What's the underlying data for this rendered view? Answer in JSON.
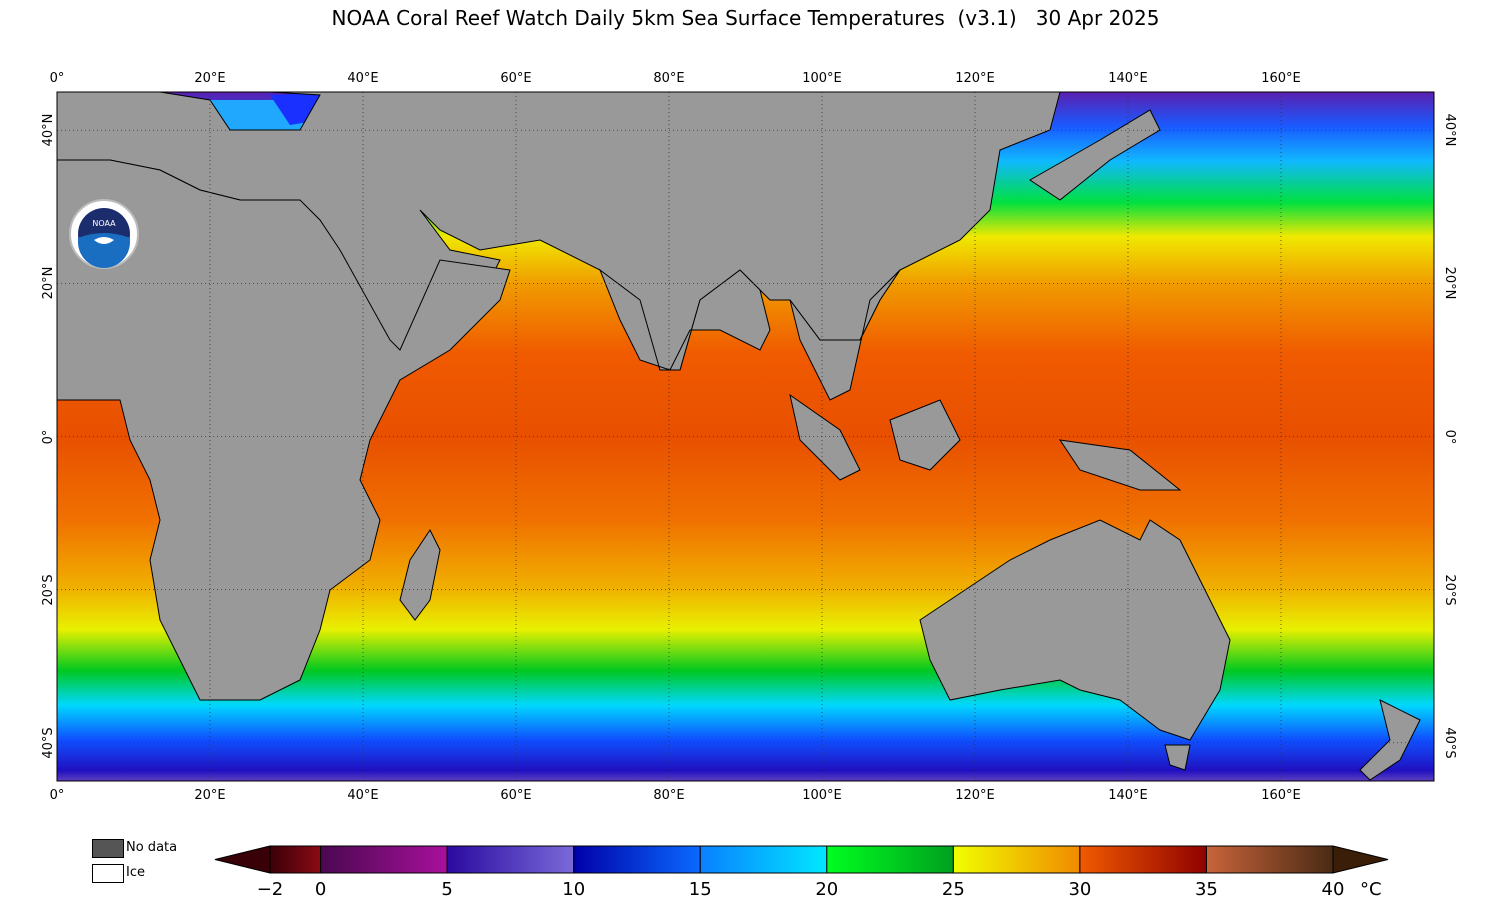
{
  "title": "NOAA Coral Reef Watch Daily 5km Sea Surface Temperatures  (v3.1)   30 Apr 2025",
  "map": {
    "lon_range": [
      0,
      180
    ],
    "lat_range": [
      -45,
      45
    ],
    "lon_ticks": [
      {
        "value": 0,
        "label": "0°"
      },
      {
        "value": 20,
        "label": "20°E"
      },
      {
        "value": 40,
        "label": "40°E"
      },
      {
        "value": 60,
        "label": "60°E"
      },
      {
        "value": 80,
        "label": "80°E"
      },
      {
        "value": 100,
        "label": "100°E"
      },
      {
        "value": 120,
        "label": "120°E"
      },
      {
        "value": 140,
        "label": "140°E"
      },
      {
        "value": 160,
        "label": "160°E"
      }
    ],
    "lat_ticks": [
      {
        "value": 40,
        "label": "40°N"
      },
      {
        "value": 20,
        "label": "20°N"
      },
      {
        "value": 0,
        "label": "0°"
      },
      {
        "value": -20,
        "label": "20°S"
      },
      {
        "value": -40,
        "label": "40°S"
      }
    ],
    "land_color": "#999999",
    "gridlines": "dotted",
    "logo": "NOAA"
  },
  "legend": {
    "no_data": "No data",
    "ice": "Ice",
    "no_data_color": "#555555",
    "ice_color": "#ffffff"
  },
  "colorbar": {
    "min": -2,
    "max": 40,
    "unit": "°C",
    "labels": [
      {
        "value": -2,
        "label": "−2"
      },
      {
        "value": 0,
        "label": "0"
      },
      {
        "value": 5,
        "label": "5"
      },
      {
        "value": 10,
        "label": "10"
      },
      {
        "value": 15,
        "label": "15"
      },
      {
        "value": 20,
        "label": "20"
      },
      {
        "value": 25,
        "label": "25"
      },
      {
        "value": 30,
        "label": "30"
      },
      {
        "value": 35,
        "label": "35"
      },
      {
        "value": 40,
        "label": "40"
      }
    ],
    "segments": [
      {
        "from": -2,
        "to": 0,
        "colors": [
          "#3a0008",
          "#8a0a14"
        ]
      },
      {
        "from": 0,
        "to": 5,
        "colors": [
          "#4a0850",
          "#a8109c"
        ]
      },
      {
        "from": 5,
        "to": 10,
        "colors": [
          "#2a0aa0",
          "#7a6ad8"
        ]
      },
      {
        "from": 10,
        "to": 15,
        "colors": [
          "#0000a8",
          "#0a6aff"
        ]
      },
      {
        "from": 15,
        "to": 20,
        "colors": [
          "#0a80ff",
          "#00e8ff"
        ]
      },
      {
        "from": 20,
        "to": 25,
        "colors": [
          "#00ff20",
          "#00a020"
        ]
      },
      {
        "from": 25,
        "to": 30,
        "colors": [
          "#f0ff00",
          "#f08a00"
        ]
      },
      {
        "from": 30,
        "to": 35,
        "colors": [
          "#f05a00",
          "#900000"
        ]
      },
      {
        "from": 35,
        "to": 40,
        "colors": [
          "#c8643a",
          "#4a2a14"
        ]
      }
    ]
  }
}
